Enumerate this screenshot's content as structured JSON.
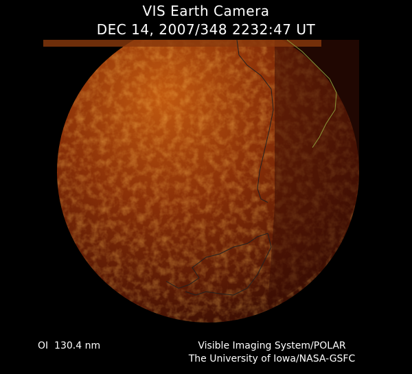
{
  "header": {
    "title": "VIS Earth Camera",
    "timestamp": "DEC 14, 2007/348 2232:47 UT"
  },
  "footer": {
    "wavelength": "OI  130.4 nm",
    "instrument": "Visible Imaging System/POLAR",
    "institution": "The University of Iowa/NASA-GSFC"
  }
}
